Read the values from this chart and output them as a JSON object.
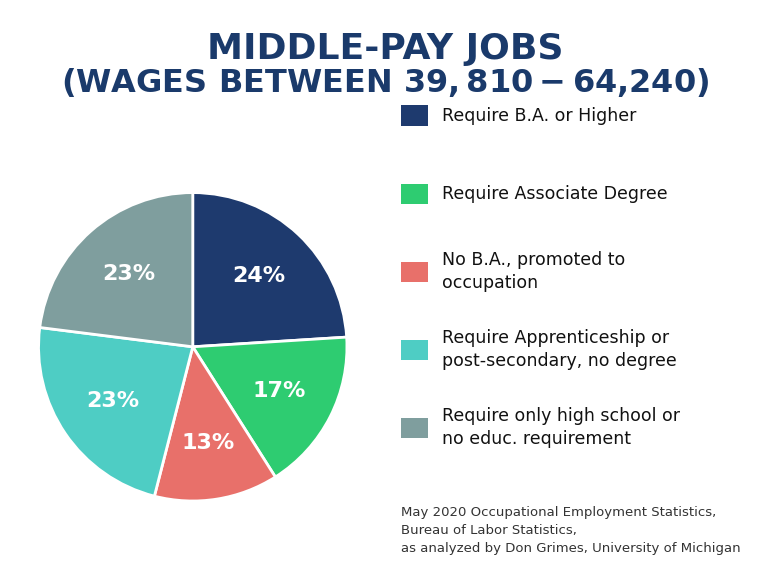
{
  "title_line1": "MIDDLE-PAY JOBS",
  "title_line2": "(WAGES BETWEEN $39,810 - $64,240)",
  "title_color": "#1a3a6b",
  "background_color": "#ffffff",
  "slices": [
    24,
    17,
    13,
    23,
    23
  ],
  "colors": [
    "#1e3a6e",
    "#2ecc71",
    "#e8706a",
    "#4ecdc4",
    "#7f9e9e"
  ],
  "labels": [
    "24%",
    "17%",
    "13%",
    "23%",
    "23%"
  ],
  "legend_labels": [
    "Require B.A. or Higher",
    "Require Associate Degree",
    "No B.A., promoted to\noccupation",
    "Require Apprenticeship or\npost-secondary, no degree",
    "Require only high school or\nno educ. requirement"
  ],
  "source_text": "May 2020 Occupational Employment Statistics,\nBureau of Labor Statistics,\nas analyzed by Don Grimes, University of Michigan",
  "wedge_label_fontsize": 16,
  "legend_fontsize": 12.5,
  "title_fontsize1": 26,
  "title_fontsize2": 23
}
